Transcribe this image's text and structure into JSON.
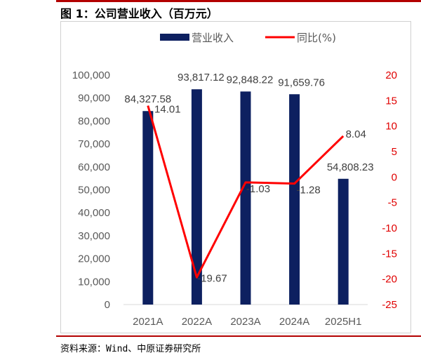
{
  "figure_title": "图 1：公司营业收入（百万元）",
  "source": "资料来源：Wind、中原证券研究所",
  "chart_data": {
    "type": "bar",
    "categories": [
      "2021A",
      "2022A",
      "2023A",
      "2024A",
      "2025H1"
    ],
    "series": [
      {
        "name": "营业收入",
        "type": "bar",
        "axis": "left",
        "color": "#0d2060",
        "values": [
          84327.58,
          93817.12,
          92848.22,
          91659.76,
          54808.23
        ],
        "labels": [
          "84,327.58",
          "93,817.12",
          "92,848.22",
          "91,659.76",
          "54,808.23"
        ]
      },
      {
        "name": "同比(%)",
        "type": "line",
        "axis": "right",
        "color": "#ff0000",
        "values": [
          14.01,
          -19.67,
          -1.03,
          -1.28,
          8.04
        ],
        "labels": [
          "14.01",
          "-19.67",
          "-1.03",
          "-1.28",
          "8.04"
        ]
      }
    ],
    "y_left": {
      "range": [
        0,
        100000
      ],
      "ticks": [
        0,
        10000,
        20000,
        30000,
        40000,
        50000,
        60000,
        70000,
        80000,
        90000,
        100000
      ],
      "tick_labels": [
        "0",
        "10,000",
        "20,000",
        "30,000",
        "40,000",
        "50,000",
        "60,000",
        "70,000",
        "80,000",
        "90,000",
        "100,000"
      ]
    },
    "y_right": {
      "range": [
        -25,
        20
      ],
      "ticks": [
        -25,
        -20,
        -15,
        -10,
        -5,
        0,
        5,
        10,
        15,
        20
      ],
      "tick_labels": [
        "-25",
        "-20",
        "-15",
        "-10",
        "-5",
        "0",
        "5",
        "10",
        "15",
        "20"
      ],
      "color": "#ff0000"
    },
    "legend": "top",
    "grid": false
  }
}
